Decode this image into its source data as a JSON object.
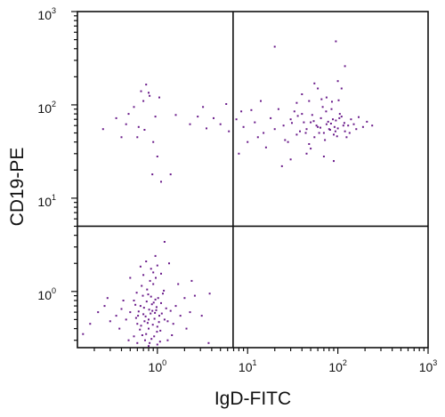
{
  "chart_data": {
    "type": "scatter",
    "xlabel": "IgD-FITC",
    "ylabel": "CD19-PE",
    "x_scale": "log",
    "y_scale": "log",
    "xlim": [
      0.13,
      1000
    ],
    "ylim": [
      0.25,
      1000
    ],
    "grid": false,
    "legend": "none",
    "x_ticks": [
      {
        "base": "10",
        "exp": "0",
        "value": 1
      },
      {
        "base": "10",
        "exp": "1",
        "value": 10
      },
      {
        "base": "10",
        "exp": "2",
        "value": 100
      },
      {
        "base": "10",
        "exp": "3",
        "value": 1000
      }
    ],
    "y_ticks": [
      {
        "base": "10",
        "exp": "0",
        "value": 1
      },
      {
        "base": "10",
        "exp": "1",
        "value": 10
      },
      {
        "base": "10",
        "exp": "2",
        "value": 100
      },
      {
        "base": "10",
        "exp": "3",
        "value": 1000
      }
    ],
    "quadrant_gates": {
      "x": 6.9,
      "y": 5.0
    },
    "point_color": "#6a1b8a",
    "points": [
      [
        0.88,
        0.62
      ],
      [
        0.72,
        0.48
      ],
      [
        1.05,
        0.55
      ],
      [
        0.95,
        0.82
      ],
      [
        0.65,
        0.7
      ],
      [
        0.8,
        0.4
      ],
      [
        1.1,
        0.75
      ],
      [
        0.58,
        0.52
      ],
      [
        0.92,
        0.33
      ],
      [
        0.77,
        1.05
      ],
      [
        1.2,
        0.5
      ],
      [
        0.69,
        0.9
      ],
      [
        0.84,
        0.58
      ],
      [
        1.0,
        0.42
      ],
      [
        0.62,
        0.61
      ],
      [
        0.9,
        1.2
      ],
      [
        0.75,
        0.35
      ],
      [
        1.15,
        0.95
      ],
      [
        0.55,
        0.8
      ],
      [
        0.98,
        0.68
      ],
      [
        0.82,
        0.28
      ],
      [
        0.7,
        0.57
      ],
      [
        1.08,
        0.38
      ],
      [
        0.6,
        0.45
      ],
      [
        0.87,
        0.73
      ],
      [
        0.93,
        0.51
      ],
      [
        0.67,
        1.15
      ],
      [
        1.25,
        0.66
      ],
      [
        0.78,
        0.46
      ],
      [
        0.85,
        0.88
      ],
      [
        0.5,
        0.6
      ],
      [
        1.3,
        0.48
      ],
      [
        0.73,
        0.3
      ],
      [
        0.96,
        1.4
      ],
      [
        0.64,
        0.39
      ],
      [
        1.02,
        0.85
      ],
      [
        0.81,
        0.64
      ],
      [
        0.57,
        0.72
      ],
      [
        1.12,
        0.58
      ],
      [
        0.89,
        0.44
      ],
      [
        0.76,
        0.78
      ],
      [
        0.68,
        0.34
      ],
      [
        0.94,
        0.59
      ],
      [
        1.18,
        1.02
      ],
      [
        0.61,
        0.55
      ],
      [
        0.86,
        0.31
      ],
      [
        0.79,
        0.93
      ],
      [
        1.04,
        0.47
      ],
      [
        0.71,
        0.67
      ],
      [
        0.99,
        0.37
      ],
      [
        0.45,
        0.5
      ],
      [
        1.4,
        0.62
      ],
      [
        0.83,
        1.3
      ],
      [
        0.66,
        0.43
      ],
      [
        0.91,
        0.76
      ],
      [
        0.74,
        0.54
      ],
      [
        1.07,
        0.29
      ],
      [
        0.59,
        0.97
      ],
      [
        0.97,
        0.63
      ],
      [
        0.8,
        0.5
      ],
      [
        0.4,
        0.65
      ],
      [
        0.35,
        0.55
      ],
      [
        0.3,
        0.48
      ],
      [
        0.42,
        0.8
      ],
      [
        0.38,
        0.4
      ],
      [
        1.6,
        0.7
      ],
      [
        1.8,
        0.55
      ],
      [
        2.0,
        0.85
      ],
      [
        1.5,
        0.45
      ],
      [
        2.3,
        0.6
      ],
      [
        0.9,
        1.6
      ],
      [
        0.85,
        1.75
      ],
      [
        1.0,
        1.9
      ],
      [
        0.75,
        2.1
      ],
      [
        1.1,
        1.55
      ],
      [
        0.7,
        1.5
      ],
      [
        0.95,
        2.4
      ],
      [
        1.2,
        3.4
      ],
      [
        0.8,
        0.26
      ],
      [
        1.0,
        0.27
      ],
      [
        0.6,
        0.28
      ],
      [
        1.3,
        0.3
      ],
      [
        0.55,
        0.33
      ],
      [
        2.6,
        0.9
      ],
      [
        3.1,
        0.55
      ],
      [
        3.8,
        0.95
      ],
      [
        0.22,
        0.6
      ],
      [
        0.18,
        0.45
      ],
      [
        0.26,
        0.7
      ],
      [
        3.7,
        0.28
      ],
      [
        0.15,
        0.35
      ],
      [
        0.28,
        0.85
      ],
      [
        1.7,
        1.2
      ],
      [
        0.5,
        1.4
      ],
      [
        2.4,
        1.3
      ],
      [
        0.65,
        1.85
      ],
      [
        1.35,
        2.0
      ],
      [
        0.48,
        0.3
      ],
      [
        1.45,
        0.34
      ],
      [
        2.1,
        0.4
      ],
      [
        0.25,
        55
      ],
      [
        0.35,
        72
      ],
      [
        0.48,
        80
      ],
      [
        0.55,
        95
      ],
      [
        0.62,
        58
      ],
      [
        0.7,
        110
      ],
      [
        0.75,
        165
      ],
      [
        0.82,
        125
      ],
      [
        0.9,
        40
      ],
      [
        0.95,
        75
      ],
      [
        1.0,
        28
      ],
      [
        1.05,
        120
      ],
      [
        0.88,
        18
      ],
      [
        0.6,
        45
      ],
      [
        0.45,
        62
      ],
      [
        0.8,
        135
      ],
      [
        1.4,
        18
      ],
      [
        1.6,
        78
      ],
      [
        2.3,
        62
      ],
      [
        2.8,
        75
      ],
      [
        3.2,
        95
      ],
      [
        3.5,
        56
      ],
      [
        4.2,
        72
      ],
      [
        5.0,
        62
      ],
      [
        5.8,
        102
      ],
      [
        6.2,
        52
      ],
      [
        1.1,
        15
      ],
      [
        0.72,
        54
      ],
      [
        0.66,
        140
      ],
      [
        0.4,
        45
      ],
      [
        20,
        55
      ],
      [
        25,
        60
      ],
      [
        30,
        70
      ],
      [
        35,
        48
      ],
      [
        40,
        80
      ],
      [
        45,
        55
      ],
      [
        50,
        65
      ],
      [
        55,
        45
      ],
      [
        60,
        58
      ],
      [
        65,
        72
      ],
      [
        70,
        50
      ],
      [
        75,
        62
      ],
      [
        80,
        55
      ],
      [
        85,
        90
      ],
      [
        90,
        48
      ],
      [
        95,
        68
      ],
      [
        100,
        56
      ],
      [
        110,
        75
      ],
      [
        120,
        52
      ],
      [
        130,
        60
      ],
      [
        28,
        40
      ],
      [
        33,
        85
      ],
      [
        38,
        52
      ],
      [
        42,
        65
      ],
      [
        48,
        38
      ],
      [
        52,
        78
      ],
      [
        58,
        60
      ],
      [
        62,
        50
      ],
      [
        68,
        95
      ],
      [
        72,
        42
      ],
      [
        78,
        66
      ],
      [
        82,
        54
      ],
      [
        88,
        70
      ],
      [
        92,
        58
      ],
      [
        98,
        46
      ],
      [
        105,
        80
      ],
      [
        115,
        60
      ],
      [
        125,
        45
      ],
      [
        140,
        70
      ],
      [
        160,
        55
      ],
      [
        18,
        72
      ],
      [
        15,
        50
      ],
      [
        12,
        65
      ],
      [
        10,
        40
      ],
      [
        9,
        58
      ],
      [
        8,
        30
      ],
      [
        7.5,
        70
      ],
      [
        11,
        88
      ],
      [
        13,
        45
      ],
      [
        16,
        35
      ],
      [
        22,
        90
      ],
      [
        26,
        42
      ],
      [
        31,
        64
      ],
      [
        36,
        76
      ],
      [
        44,
        50
      ],
      [
        54,
        67
      ],
      [
        64,
        57
      ],
      [
        74,
        85
      ],
      [
        84,
        63
      ],
      [
        94,
        52
      ],
      [
        104,
        72
      ],
      [
        118,
        64
      ],
      [
        135,
        50
      ],
      [
        150,
        62
      ],
      [
        170,
        74
      ],
      [
        190,
        58
      ],
      [
        210,
        66
      ],
      [
        240,
        60
      ],
      [
        60,
        150
      ],
      [
        75,
        120
      ],
      [
        100,
        180
      ],
      [
        110,
        150
      ],
      [
        55,
        170
      ],
      [
        40,
        130
      ],
      [
        20,
        420
      ],
      [
        95,
        480
      ],
      [
        120,
        260
      ],
      [
        90,
        25
      ],
      [
        70,
        28
      ],
      [
        45,
        30
      ],
      [
        35,
        105
      ],
      [
        48,
        110
      ],
      [
        66,
        115
      ],
      [
        86,
        108
      ],
      [
        102,
        112
      ],
      [
        30,
        26
      ],
      [
        8.5,
        85
      ],
      [
        14,
        110
      ],
      [
        24,
        22
      ],
      [
        50,
        34
      ]
    ]
  }
}
